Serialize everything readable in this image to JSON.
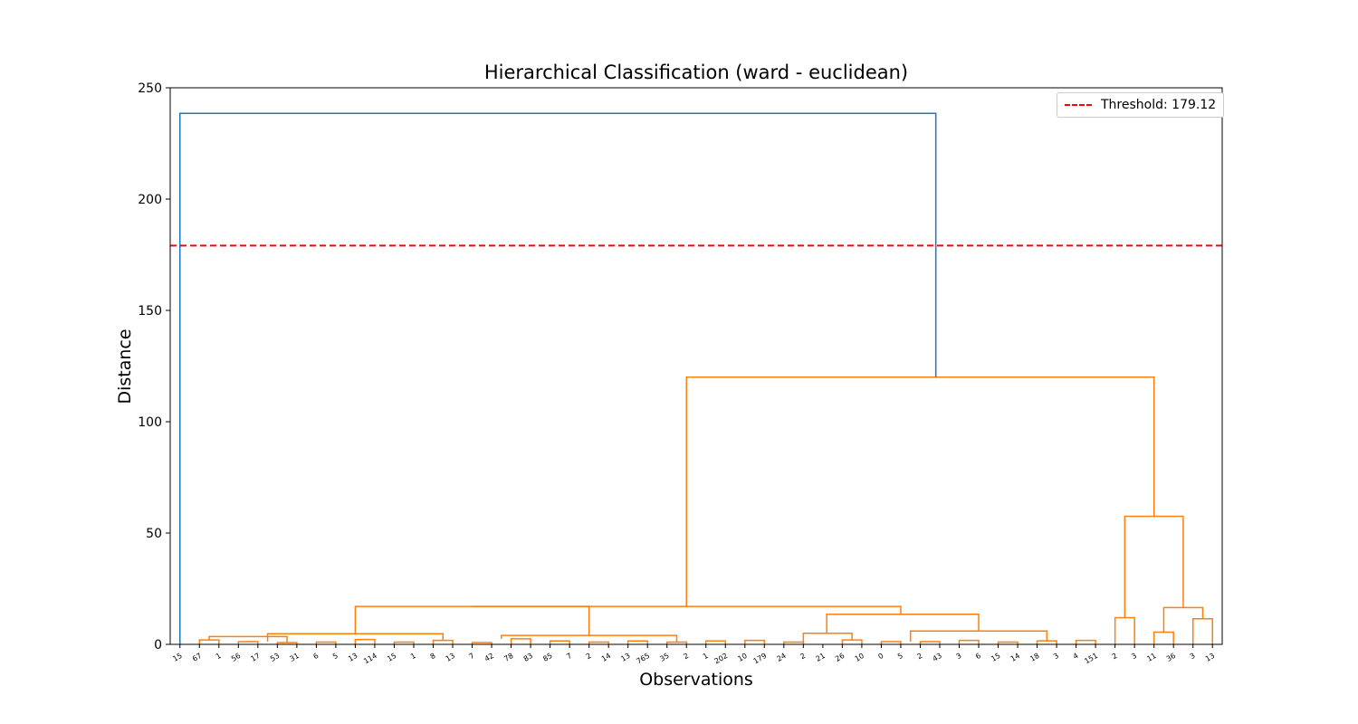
{
  "chart_data": {
    "type": "dendrogram",
    "title": "Hierarchical Classification (ward - euclidean)",
    "xlabel": "Observations",
    "ylabel": "Distance",
    "ylim": [
      0,
      250
    ],
    "yticks": [
      0,
      50,
      100,
      150,
      200,
      250
    ],
    "threshold": 179.12,
    "legend": {
      "label": "Threshold: 179.12",
      "position": "top-right"
    },
    "colors": {
      "above_threshold": "#1f77b4",
      "cluster": "#ff7f0e",
      "threshold": "#ff0000"
    },
    "leaf_labels": [
      "15",
      "67",
      "1",
      "56",
      "17",
      "53",
      "31",
      "6",
      "5",
      "13",
      "114",
      "15",
      "1",
      "8",
      "13",
      "7",
      "42",
      "78",
      "83",
      "85",
      "7",
      "2",
      "14",
      "13",
      "765",
      "35",
      "2",
      "1",
      "202",
      "10",
      "179",
      "24",
      "2",
      "21",
      "26",
      "10",
      "0",
      "5",
      "2",
      "43",
      "3",
      "6",
      "15",
      "14",
      "18",
      "3",
      "4",
      "151",
      "2",
      "3",
      "11",
      "36",
      "3",
      "13"
    ],
    "merges": [
      {
        "left": 0,
        "right": 1,
        "height": 238.5,
        "color": "above_threshold"
      },
      {
        "left": 2,
        "right": 3,
        "height": 120.0,
        "color": "cluster"
      },
      {
        "left": 4,
        "right": 5,
        "height": 17.0,
        "color": "cluster"
      },
      {
        "left": 6,
        "right": 7,
        "height": 57.5,
        "color": "cluster"
      },
      {
        "left": 8,
        "right": 9,
        "height": 4.8,
        "color": "cluster"
      },
      {
        "left": 10,
        "right": 11,
        "height": 13.5,
        "color": "cluster"
      },
      {
        "left": 12,
        "right": 13,
        "height": 3.5,
        "color": "cluster"
      },
      {
        "left": 14,
        "right": 15,
        "height": 4.0,
        "color": "cluster"
      },
      {
        "left": 16,
        "right": 17,
        "height": 5.0,
        "color": "cluster"
      },
      {
        "left": 18,
        "right": 19,
        "height": 6.0,
        "color": "cluster"
      },
      {
        "left": 20,
        "right": 21,
        "height": 12.0,
        "color": "cluster"
      },
      {
        "left": 22,
        "right": 23,
        "height": 16.5,
        "color": "cluster"
      }
    ]
  }
}
